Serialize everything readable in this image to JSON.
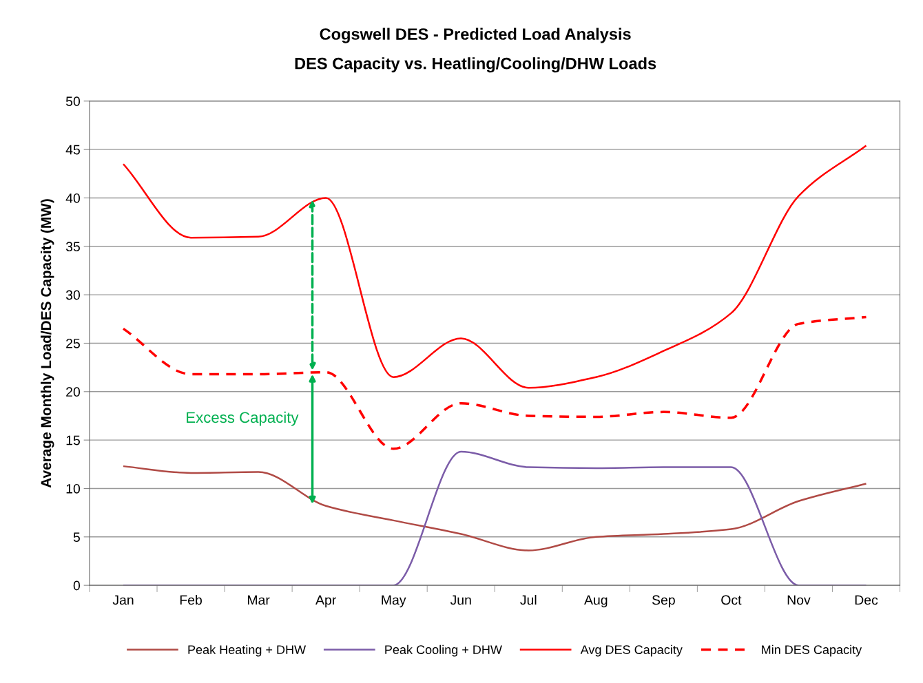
{
  "chart_data": {
    "type": "line",
    "title": "Cogswell DES - Predicted Load Analysis",
    "subtitle": "DES Capacity vs. Heatling/Cooling/DHW Loads",
    "ylabel": "Average Monthly Load/DES Capacity (MW)",
    "categories": [
      "Jan",
      "Feb",
      "Mar",
      "Apr",
      "May",
      "Jun",
      "Jul",
      "Aug",
      "Sep",
      "Oct",
      "Nov",
      "Dec"
    ],
    "series": [
      {
        "name": "Peak Heating + DHW",
        "color": "#b04a45",
        "values": [
          12.3,
          11.6,
          11.7,
          8.2,
          6.7,
          5.3,
          3.6,
          5.0,
          5.3,
          5.8,
          8.7,
          10.5
        ]
      },
      {
        "name": "Peak Cooling + DHW",
        "color": "#7b5ca8",
        "values": [
          0,
          0,
          0,
          0,
          0,
          13.8,
          12.2,
          12.1,
          12.2,
          12.2,
          0,
          0
        ]
      },
      {
        "name": "Avg DES Capacity",
        "color": "#ff0000",
        "values": [
          43.5,
          35.9,
          36.0,
          40.0,
          21.5,
          25.5,
          20.4,
          21.5,
          24.2,
          28.1,
          40.2,
          45.4
        ]
      },
      {
        "name": "Min DES Capacity",
        "color": "#ff0000",
        "line_style": "dashed",
        "values": [
          26.5,
          21.8,
          21.8,
          22.0,
          14.1,
          18.8,
          17.5,
          17.4,
          17.9,
          17.3,
          27.0,
          27.7
        ]
      }
    ],
    "ylim": [
      0,
      50
    ],
    "yticks": [
      0,
      5,
      10,
      15,
      20,
      25,
      30,
      35,
      40,
      45,
      50
    ],
    "grid": "y",
    "legend": "bottom",
    "marker": "none",
    "line_style": "solid",
    "annotations": [
      "Excess Capacity"
    ]
  }
}
